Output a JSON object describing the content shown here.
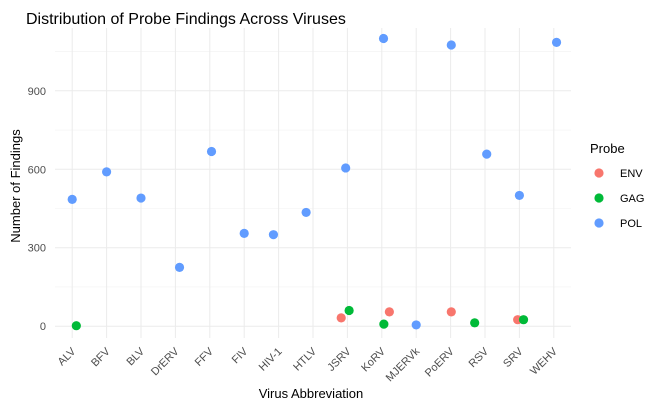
{
  "chart_data": {
    "type": "scatter",
    "title": "Distribution of Probe Findings Across Viruses",
    "xlabel": "Virus Abbreviation",
    "ylabel": "Number of Findings",
    "categories": [
      "ALV",
      "BFV",
      "BLV",
      "DrERV",
      "FFV",
      "FIV",
      "HIV-1",
      "HTLV",
      "JSRV",
      "KoRV",
      "MJERVk",
      "PoERV",
      "RSV",
      "SRV",
      "WEHV"
    ],
    "yticks": [
      0,
      300,
      600,
      900
    ],
    "ylim": [
      -45,
      1140
    ],
    "grid": true,
    "legend": {
      "title": "Probe",
      "position": "right"
    },
    "series": [
      {
        "name": "ENV",
        "color": "#F8766D",
        "points": [
          {
            "category": "JSRV",
            "value": 32,
            "jitter": -0.18
          },
          {
            "category": "KoRV",
            "value": 55,
            "jitter": 0.22
          },
          {
            "category": "PoERV",
            "value": 55,
            "jitter": 0.02
          },
          {
            "category": "SRV",
            "value": 25,
            "jitter": -0.05
          }
        ]
      },
      {
        "name": "GAG",
        "color": "#00BA38",
        "points": [
          {
            "category": "ALV",
            "value": 2,
            "jitter": 0.12
          },
          {
            "category": "JSRV",
            "value": 60,
            "jitter": 0.05
          },
          {
            "category": "KoRV",
            "value": 8,
            "jitter": 0.06
          },
          {
            "category": "RSV",
            "value": 13,
            "jitter": -0.3
          },
          {
            "category": "SRV",
            "value": 25,
            "jitter": 0.12
          }
        ]
      },
      {
        "name": "POL",
        "color": "#619CFF",
        "points": [
          {
            "category": "ALV",
            "value": 485,
            "jitter": 0.0
          },
          {
            "category": "BFV",
            "value": 590,
            "jitter": 0.0
          },
          {
            "category": "BLV",
            "value": 490,
            "jitter": 0.0
          },
          {
            "category": "DrERV",
            "value": 225,
            "jitter": 0.12
          },
          {
            "category": "FFV",
            "value": 668,
            "jitter": 0.05
          },
          {
            "category": "FIV",
            "value": 355,
            "jitter": 0.0
          },
          {
            "category": "HIV-1",
            "value": 350,
            "jitter": -0.15
          },
          {
            "category": "HTLV",
            "value": 435,
            "jitter": -0.2
          },
          {
            "category": "JSRV",
            "value": 605,
            "jitter": -0.05
          },
          {
            "category": "KoRV",
            "value": 1100,
            "jitter": 0.05
          },
          {
            "category": "MJERVk",
            "value": 5,
            "jitter": 0.0
          },
          {
            "category": "PoERV",
            "value": 1075,
            "jitter": 0.02
          },
          {
            "category": "RSV",
            "value": 658,
            "jitter": 0.05
          },
          {
            "category": "SRV",
            "value": 500,
            "jitter": 0.0
          },
          {
            "category": "WEHV",
            "value": 1085,
            "jitter": 0.08
          }
        ]
      }
    ]
  }
}
